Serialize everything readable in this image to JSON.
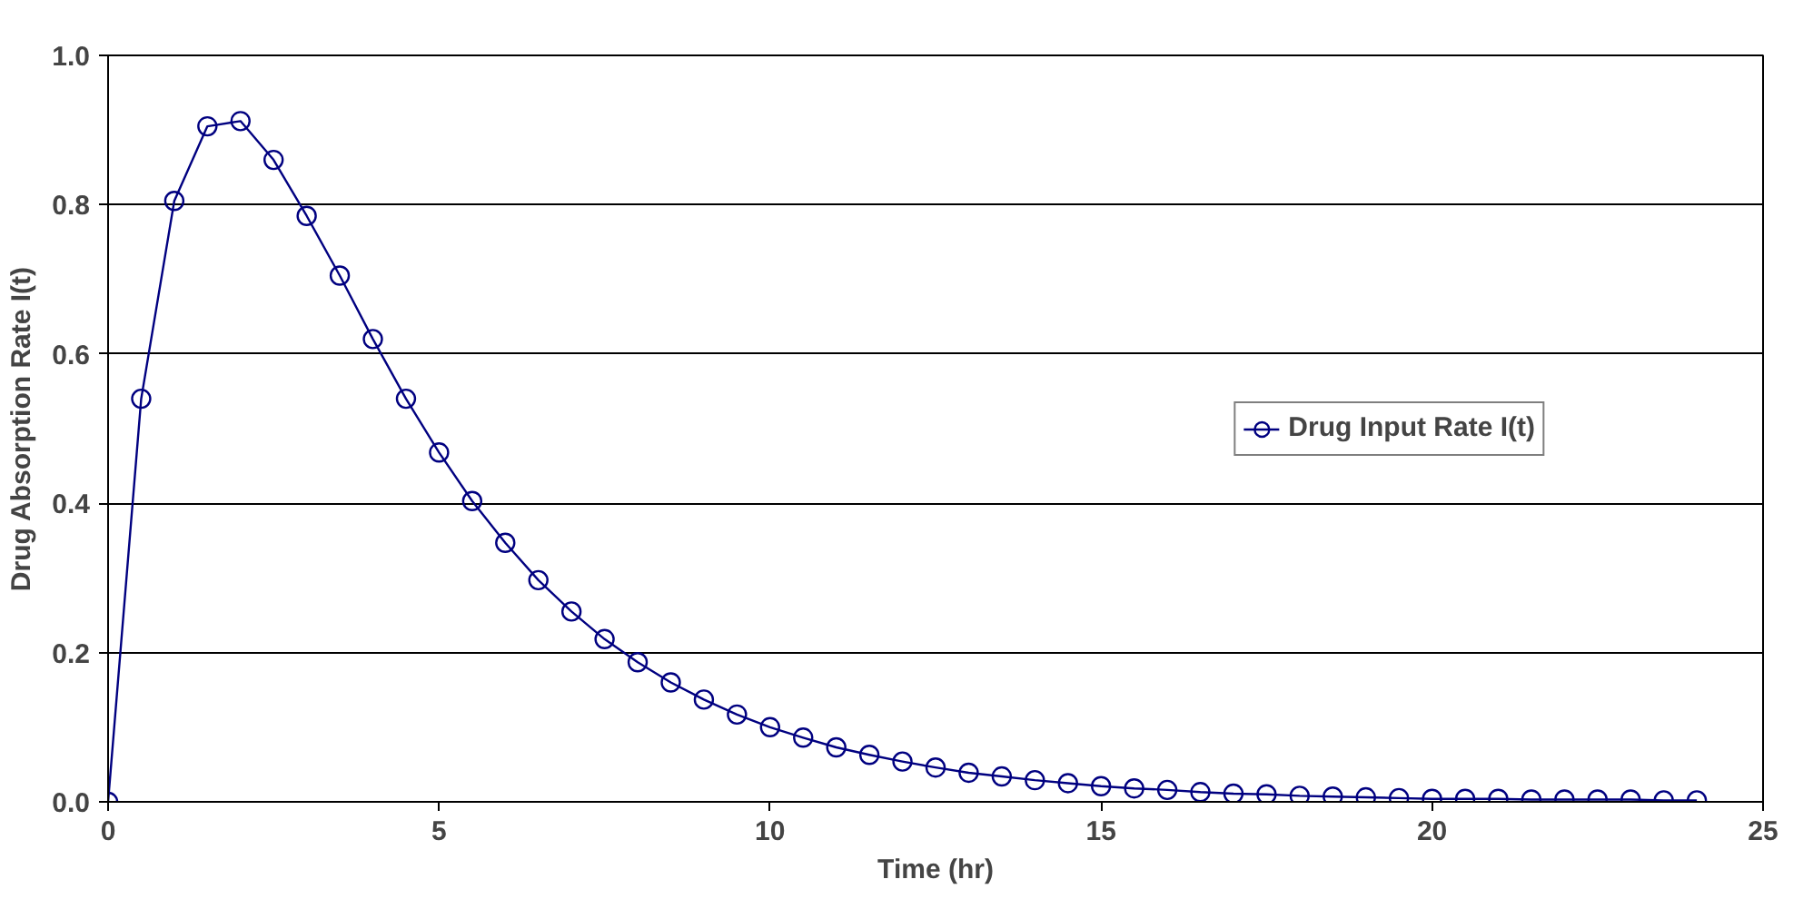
{
  "chart_data": {
    "type": "line",
    "xlabel": "Time (hr)",
    "ylabel": "Drug Absorption Rate I(t)",
    "x": [
      0,
      0.5,
      1,
      1.5,
      2,
      2.5,
      3,
      3.5,
      4,
      4.5,
      5,
      5.5,
      6,
      6.5,
      7,
      7.5,
      8,
      8.5,
      9,
      9.5,
      10,
      10.5,
      11,
      11.5,
      12,
      12.5,
      13,
      13.5,
      14,
      14.5,
      15,
      15.5,
      16,
      16.5,
      17,
      17.5,
      18,
      18.5,
      19,
      19.5,
      20,
      20.5,
      21,
      21.5,
      22,
      22.5,
      23,
      23.5,
      24
    ],
    "series": [
      {
        "name": "Drug Input Rate I(t)",
        "color": "#000080",
        "values": [
          0,
          0.54,
          0.805,
          0.905,
          0.912,
          0.86,
          0.785,
          0.705,
          0.62,
          0.54,
          0.468,
          0.403,
          0.347,
          0.297,
          0.255,
          0.218,
          0.187,
          0.16,
          0.137,
          0.117,
          0.1,
          0.086,
          0.073,
          0.063,
          0.054,
          0.046,
          0.039,
          0.034,
          0.029,
          0.025,
          0.021,
          0.018,
          0.016,
          0.013,
          0.011,
          0.01,
          0.008,
          0.007,
          0.006,
          0.005,
          0.004,
          0.004,
          0.004,
          0.003,
          0.003,
          0.003,
          0.003,
          0.002,
          0.002
        ]
      }
    ],
    "xlim": [
      0,
      25
    ],
    "xticks": [
      0,
      5,
      10,
      15,
      20,
      25
    ],
    "ylim": [
      0,
      1.0
    ],
    "yticks": [
      {
        "value": 0,
        "label": "0.0"
      },
      {
        "value": 0.2,
        "label": "0.2"
      },
      {
        "value": 0.4,
        "label": "0.4"
      },
      {
        "value": 0.6,
        "label": "0.6"
      },
      {
        "value": 0.8,
        "label": "0.8"
      },
      {
        "value": 1.0,
        "label": "1.0"
      }
    ],
    "grid": "y",
    "legend": "right",
    "marker": "circle",
    "line_style": "solid"
  }
}
